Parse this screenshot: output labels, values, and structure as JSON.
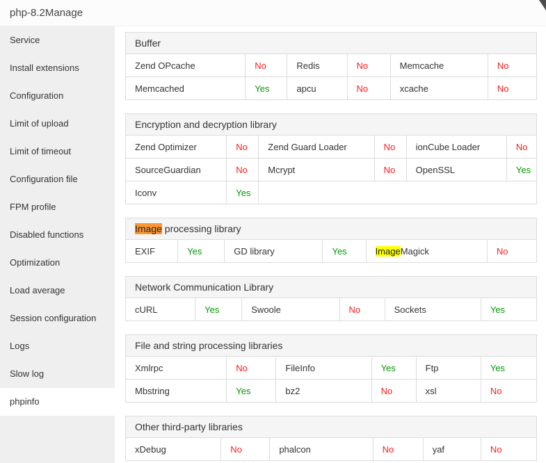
{
  "window": {
    "title": "php-8.2Manage"
  },
  "icons": {
    "corner_artifact": "clipped-cursor-triangle"
  },
  "colors": {
    "yes": "#009900",
    "no": "#ff1a1a",
    "find_highlight_active": "#ff9632",
    "find_highlight": "#ffff00"
  },
  "sidebar": {
    "active_index": 13,
    "items": [
      "Service",
      "Install extensions",
      "Configuration",
      "Limit of upload",
      "Limit of timeout",
      "Configuration file",
      "FPM profile",
      "Disabled functions",
      "Optimization",
      "Load average",
      "Session configuration",
      "Logs",
      "Slow log",
      "phpinfo"
    ]
  },
  "sections": {
    "buffer": {
      "title": "Buffer",
      "rows": [
        [
          {
            "name": "Zend OPcache",
            "value": "No"
          },
          {
            "name": "Redis",
            "value": "No"
          },
          {
            "name": "Memcache",
            "value": "No"
          }
        ],
        [
          {
            "name": "Memcached",
            "value": "Yes"
          },
          {
            "name": "apcu",
            "value": "No"
          },
          {
            "name": "xcache",
            "value": "No"
          }
        ]
      ]
    },
    "encryption": {
      "title": "Encryption and decryption library",
      "rows": [
        [
          {
            "name": "Zend Optimizer",
            "value": "No"
          },
          {
            "name": "Zend Guard Loader",
            "value": "No"
          },
          {
            "name": "ionCube Loader",
            "value": "No"
          }
        ],
        [
          {
            "name": "SourceGuardian",
            "value": "No"
          },
          {
            "name": "Mcrypt",
            "value": "No"
          },
          {
            "name": "OpenSSL",
            "value": "Yes"
          }
        ],
        [
          {
            "name": "Iconv",
            "value": "Yes"
          }
        ]
      ]
    },
    "image": {
      "title_parts": {
        "highlight": "Image",
        "rest": " processing library"
      },
      "rows": [
        [
          {
            "name": "EXIF",
            "value": "Yes"
          },
          {
            "name": "GD library",
            "value": "Yes"
          },
          {
            "name_parts": {
              "highlight": "Image",
              "rest": "Magick"
            },
            "value": "No"
          }
        ]
      ]
    },
    "network": {
      "title": "Network Communication Library",
      "rows": [
        [
          {
            "name": "cURL",
            "value": "Yes"
          },
          {
            "name": "Swoole",
            "value": "No"
          },
          {
            "name": "Sockets",
            "value": "Yes"
          }
        ]
      ]
    },
    "file": {
      "title": "File and string processing libraries",
      "rows": [
        [
          {
            "name": "Xmlrpc",
            "value": "No"
          },
          {
            "name": "FileInfo",
            "value": "Yes"
          },
          {
            "name": "Ftp",
            "value": "Yes"
          }
        ],
        [
          {
            "name": "Mbstring",
            "value": "Yes"
          },
          {
            "name": "bz2",
            "value": "No"
          },
          {
            "name": "xsl",
            "value": "No"
          }
        ]
      ]
    },
    "other": {
      "title": "Other third-party libraries",
      "rows": [
        [
          {
            "name": "xDebug",
            "value": "No"
          },
          {
            "name": "phalcon",
            "value": "No"
          },
          {
            "name": "yaf",
            "value": "No"
          }
        ]
      ]
    }
  }
}
